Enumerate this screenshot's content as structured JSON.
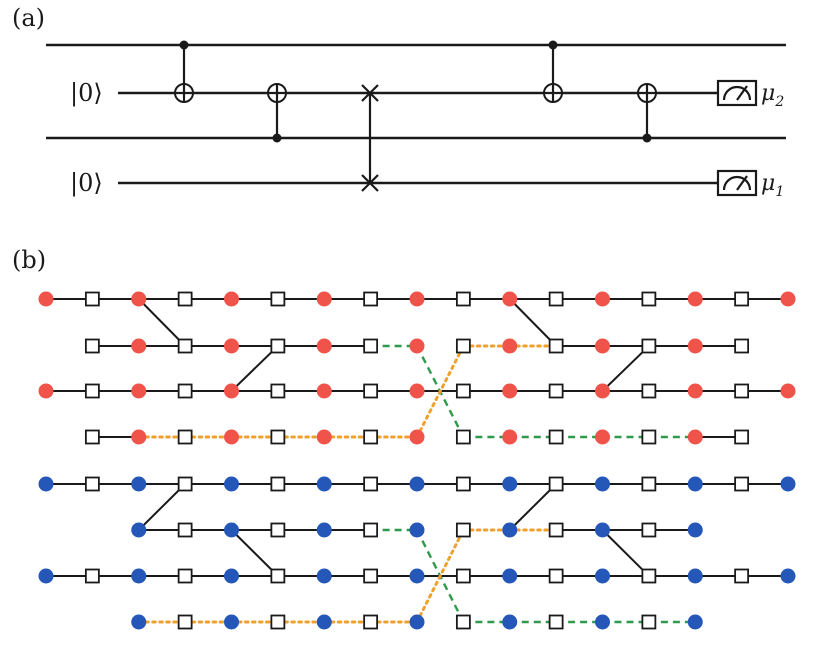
{
  "panel_a": {
    "label": "(a)",
    "ket_top": "|0⟩",
    "ket_bottom": "|0⟩",
    "meas_top": {
      "symbol": "μ",
      "sub": "2"
    },
    "meas_bottom": {
      "symbol": "μ",
      "sub": "1"
    }
  },
  "panel_b": {
    "label": "(b)"
  },
  "colors": {
    "red_node": "#f0534a",
    "blue_node": "#2457b8",
    "green_edge": "#2e9a4c",
    "orange_edge": "#f0a02d"
  }
}
